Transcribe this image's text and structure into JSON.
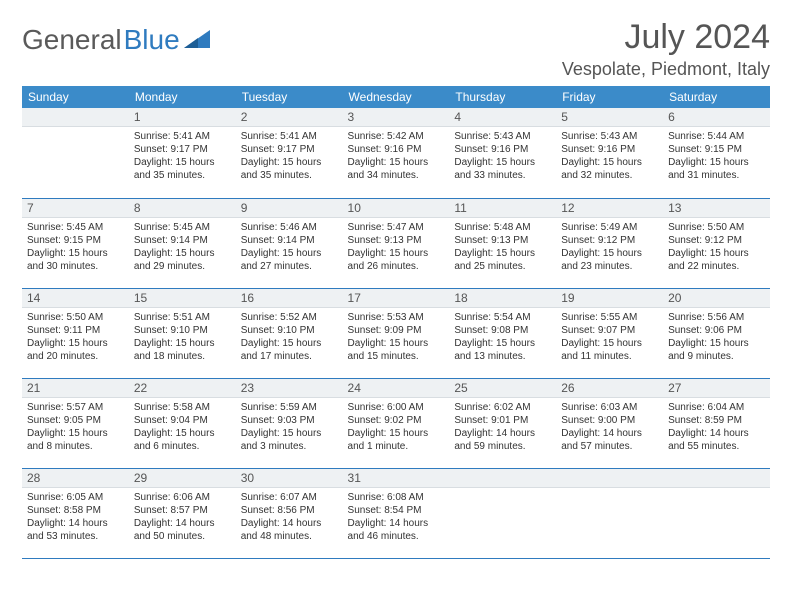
{
  "logo": {
    "part1": "General",
    "part2": "Blue"
  },
  "title": "July 2024",
  "location": "Vespolate, Piedmont, Italy",
  "colors": {
    "header_bg": "#3b8bc9",
    "header_text": "#ffffff",
    "daynum_bg": "#eef1f3",
    "rule": "#2f7bbf",
    "text": "#333333",
    "title_text": "#555555"
  },
  "weekdays": [
    "Sunday",
    "Monday",
    "Tuesday",
    "Wednesday",
    "Thursday",
    "Friday",
    "Saturday"
  ],
  "weeks": [
    [
      {
        "n": "",
        "empty": true
      },
      {
        "n": "1",
        "rise": "Sunrise: 5:41 AM",
        "set": "Sunset: 9:17 PM",
        "dl1": "Daylight: 15 hours",
        "dl2": "and 35 minutes."
      },
      {
        "n": "2",
        "rise": "Sunrise: 5:41 AM",
        "set": "Sunset: 9:17 PM",
        "dl1": "Daylight: 15 hours",
        "dl2": "and 35 minutes."
      },
      {
        "n": "3",
        "rise": "Sunrise: 5:42 AM",
        "set": "Sunset: 9:16 PM",
        "dl1": "Daylight: 15 hours",
        "dl2": "and 34 minutes."
      },
      {
        "n": "4",
        "rise": "Sunrise: 5:43 AM",
        "set": "Sunset: 9:16 PM",
        "dl1": "Daylight: 15 hours",
        "dl2": "and 33 minutes."
      },
      {
        "n": "5",
        "rise": "Sunrise: 5:43 AM",
        "set": "Sunset: 9:16 PM",
        "dl1": "Daylight: 15 hours",
        "dl2": "and 32 minutes."
      },
      {
        "n": "6",
        "rise": "Sunrise: 5:44 AM",
        "set": "Sunset: 9:15 PM",
        "dl1": "Daylight: 15 hours",
        "dl2": "and 31 minutes."
      }
    ],
    [
      {
        "n": "7",
        "rise": "Sunrise: 5:45 AM",
        "set": "Sunset: 9:15 PM",
        "dl1": "Daylight: 15 hours",
        "dl2": "and 30 minutes."
      },
      {
        "n": "8",
        "rise": "Sunrise: 5:45 AM",
        "set": "Sunset: 9:14 PM",
        "dl1": "Daylight: 15 hours",
        "dl2": "and 29 minutes."
      },
      {
        "n": "9",
        "rise": "Sunrise: 5:46 AM",
        "set": "Sunset: 9:14 PM",
        "dl1": "Daylight: 15 hours",
        "dl2": "and 27 minutes."
      },
      {
        "n": "10",
        "rise": "Sunrise: 5:47 AM",
        "set": "Sunset: 9:13 PM",
        "dl1": "Daylight: 15 hours",
        "dl2": "and 26 minutes."
      },
      {
        "n": "11",
        "rise": "Sunrise: 5:48 AM",
        "set": "Sunset: 9:13 PM",
        "dl1": "Daylight: 15 hours",
        "dl2": "and 25 minutes."
      },
      {
        "n": "12",
        "rise": "Sunrise: 5:49 AM",
        "set": "Sunset: 9:12 PM",
        "dl1": "Daylight: 15 hours",
        "dl2": "and 23 minutes."
      },
      {
        "n": "13",
        "rise": "Sunrise: 5:50 AM",
        "set": "Sunset: 9:12 PM",
        "dl1": "Daylight: 15 hours",
        "dl2": "and 22 minutes."
      }
    ],
    [
      {
        "n": "14",
        "rise": "Sunrise: 5:50 AM",
        "set": "Sunset: 9:11 PM",
        "dl1": "Daylight: 15 hours",
        "dl2": "and 20 minutes."
      },
      {
        "n": "15",
        "rise": "Sunrise: 5:51 AM",
        "set": "Sunset: 9:10 PM",
        "dl1": "Daylight: 15 hours",
        "dl2": "and 18 minutes."
      },
      {
        "n": "16",
        "rise": "Sunrise: 5:52 AM",
        "set": "Sunset: 9:10 PM",
        "dl1": "Daylight: 15 hours",
        "dl2": "and 17 minutes."
      },
      {
        "n": "17",
        "rise": "Sunrise: 5:53 AM",
        "set": "Sunset: 9:09 PM",
        "dl1": "Daylight: 15 hours",
        "dl2": "and 15 minutes."
      },
      {
        "n": "18",
        "rise": "Sunrise: 5:54 AM",
        "set": "Sunset: 9:08 PM",
        "dl1": "Daylight: 15 hours",
        "dl2": "and 13 minutes."
      },
      {
        "n": "19",
        "rise": "Sunrise: 5:55 AM",
        "set": "Sunset: 9:07 PM",
        "dl1": "Daylight: 15 hours",
        "dl2": "and 11 minutes."
      },
      {
        "n": "20",
        "rise": "Sunrise: 5:56 AM",
        "set": "Sunset: 9:06 PM",
        "dl1": "Daylight: 15 hours",
        "dl2": "and 9 minutes."
      }
    ],
    [
      {
        "n": "21",
        "rise": "Sunrise: 5:57 AM",
        "set": "Sunset: 9:05 PM",
        "dl1": "Daylight: 15 hours",
        "dl2": "and 8 minutes."
      },
      {
        "n": "22",
        "rise": "Sunrise: 5:58 AM",
        "set": "Sunset: 9:04 PM",
        "dl1": "Daylight: 15 hours",
        "dl2": "and 6 minutes."
      },
      {
        "n": "23",
        "rise": "Sunrise: 5:59 AM",
        "set": "Sunset: 9:03 PM",
        "dl1": "Daylight: 15 hours",
        "dl2": "and 3 minutes."
      },
      {
        "n": "24",
        "rise": "Sunrise: 6:00 AM",
        "set": "Sunset: 9:02 PM",
        "dl1": "Daylight: 15 hours",
        "dl2": "and 1 minute."
      },
      {
        "n": "25",
        "rise": "Sunrise: 6:02 AM",
        "set": "Sunset: 9:01 PM",
        "dl1": "Daylight: 14 hours",
        "dl2": "and 59 minutes."
      },
      {
        "n": "26",
        "rise": "Sunrise: 6:03 AM",
        "set": "Sunset: 9:00 PM",
        "dl1": "Daylight: 14 hours",
        "dl2": "and 57 minutes."
      },
      {
        "n": "27",
        "rise": "Sunrise: 6:04 AM",
        "set": "Sunset: 8:59 PM",
        "dl1": "Daylight: 14 hours",
        "dl2": "and 55 minutes."
      }
    ],
    [
      {
        "n": "28",
        "rise": "Sunrise: 6:05 AM",
        "set": "Sunset: 8:58 PM",
        "dl1": "Daylight: 14 hours",
        "dl2": "and 53 minutes."
      },
      {
        "n": "29",
        "rise": "Sunrise: 6:06 AM",
        "set": "Sunset: 8:57 PM",
        "dl1": "Daylight: 14 hours",
        "dl2": "and 50 minutes."
      },
      {
        "n": "30",
        "rise": "Sunrise: 6:07 AM",
        "set": "Sunset: 8:56 PM",
        "dl1": "Daylight: 14 hours",
        "dl2": "and 48 minutes."
      },
      {
        "n": "31",
        "rise": "Sunrise: 6:08 AM",
        "set": "Sunset: 8:54 PM",
        "dl1": "Daylight: 14 hours",
        "dl2": "and 46 minutes."
      },
      {
        "n": "",
        "empty": true
      },
      {
        "n": "",
        "empty": true
      },
      {
        "n": "",
        "empty": true
      }
    ]
  ]
}
